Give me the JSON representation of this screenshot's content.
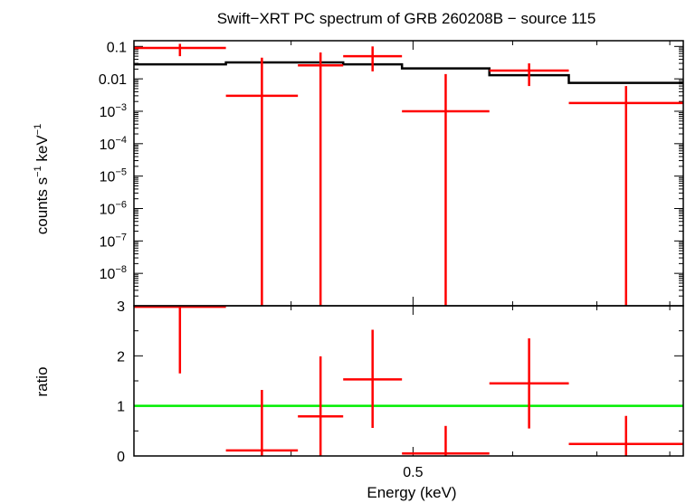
{
  "chart_data": [
    {
      "type": "scatter",
      "title": "Swift−XRT PC spectrum of GRB 260208B − source 115",
      "xlabel": "",
      "ylabel": "counts s⁻¹ keV⁻¹",
      "ylabel_parts": {
        "a": "counts s",
        "b": "−1",
        "c": " keV",
        "d": "−1"
      },
      "yscale": "log",
      "ylim": [
        1e-09,
        0.15
      ],
      "yticks": [
        {
          "m": "0.1",
          "e": "",
          "v": 0.1
        },
        {
          "m": "0.01",
          "e": "",
          "v": 0.01
        },
        {
          "m": "10",
          "e": "−3",
          "v": 0.001
        },
        {
          "m": "10",
          "e": "−4",
          "v": 0.0001
        },
        {
          "m": "10",
          "e": "−5",
          "v": 1e-05
        },
        {
          "m": "10",
          "e": "−6",
          "v": 1e-06
        },
        {
          "m": "10",
          "e": "−7",
          "v": 1e-07
        },
        {
          "m": "10",
          "e": "−8",
          "v": 1e-08
        }
      ],
      "colors": {
        "data": "#ff0000",
        "model": "#000000"
      },
      "series": [
        {
          "name": "",
          "style": "errorbars",
          "points": [
            {
              "x": [
                0.3,
                0.355
              ],
              "y": 0.09,
              "ylo": 0.05,
              "yhi": 0.12
            },
            {
              "x": [
                0.355,
                0.405
              ],
              "y": 0.003,
              "ylo": 1e-10,
              "yhi": 0.045
            },
            {
              "x": [
                0.405,
                0.44
              ],
              "y": 0.026,
              "ylo": 1e-10,
              "yhi": 0.065
            },
            {
              "x": [
                0.44,
                0.49
              ],
              "y": 0.05,
              "ylo": 0.017,
              "yhi": 0.1
            },
            {
              "x": [
                0.49,
                0.575
              ],
              "y": 0.001,
              "ylo": 1e-10,
              "yhi": 0.014
            },
            {
              "x": [
                0.575,
                0.665
              ],
              "y": 0.018,
              "ylo": 0.006,
              "yhi": 0.03
            },
            {
              "x": [
                0.665,
                0.82
              ],
              "y": 0.0018,
              "ylo": 1e-10,
              "yhi": 0.006
            }
          ]
        },
        {
          "name": "",
          "style": "step",
          "steps": [
            {
              "x": [
                0.3,
                0.355
              ],
              "y": 0.028
            },
            {
              "x": [
                0.355,
                0.405
              ],
              "y": 0.032
            },
            {
              "x": [
                0.405,
                0.44
              ],
              "y": 0.032
            },
            {
              "x": [
                0.44,
                0.49
              ],
              "y": 0.028
            },
            {
              "x": [
                0.49,
                0.575
              ],
              "y": 0.021
            },
            {
              "x": [
                0.575,
                0.665
              ],
              "y": 0.013
            },
            {
              "x": [
                0.665,
                0.82
              ],
              "y": 0.0075
            }
          ]
        }
      ]
    },
    {
      "type": "scatter",
      "title": "",
      "xlabel": "Energy (keV)",
      "ylabel": "ratio",
      "xscale": "log",
      "xlim": [
        0.3,
        0.82
      ],
      "xticks": [
        {
          "label": "0.5",
          "v": 0.5
        }
      ],
      "ylim": [
        0,
        3
      ],
      "yticks": [
        {
          "label": "0",
          "v": 0
        },
        {
          "label": "1",
          "v": 1
        },
        {
          "label": "2",
          "v": 2
        },
        {
          "label": "3",
          "v": 3
        }
      ],
      "colors": {
        "data": "#ff0000",
        "reference": "#00ee00"
      },
      "reference_line": 1,
      "series": [
        {
          "name": "",
          "style": "errorbars",
          "points": [
            {
              "x": [
                0.3,
                0.355
              ],
              "y": 2.98,
              "ylo": 1.65,
              "yhi": 3.0
            },
            {
              "x": [
                0.355,
                0.405
              ],
              "y": 0.11,
              "ylo": 0.0,
              "yhi": 1.32
            },
            {
              "x": [
                0.405,
                0.44
              ],
              "y": 0.79,
              "ylo": 0.0,
              "yhi": 1.99
            },
            {
              "x": [
                0.44,
                0.49
              ],
              "y": 1.53,
              "ylo": 0.56,
              "yhi": 2.52
            },
            {
              "x": [
                0.49,
                0.575
              ],
              "y": 0.05,
              "ylo": 0.0,
              "yhi": 0.6
            },
            {
              "x": [
                0.575,
                0.665
              ],
              "y": 1.45,
              "ylo": 0.55,
              "yhi": 2.35
            },
            {
              "x": [
                0.665,
                0.82
              ],
              "y": 0.24,
              "ylo": 0.0,
              "yhi": 0.8
            }
          ]
        }
      ]
    }
  ]
}
